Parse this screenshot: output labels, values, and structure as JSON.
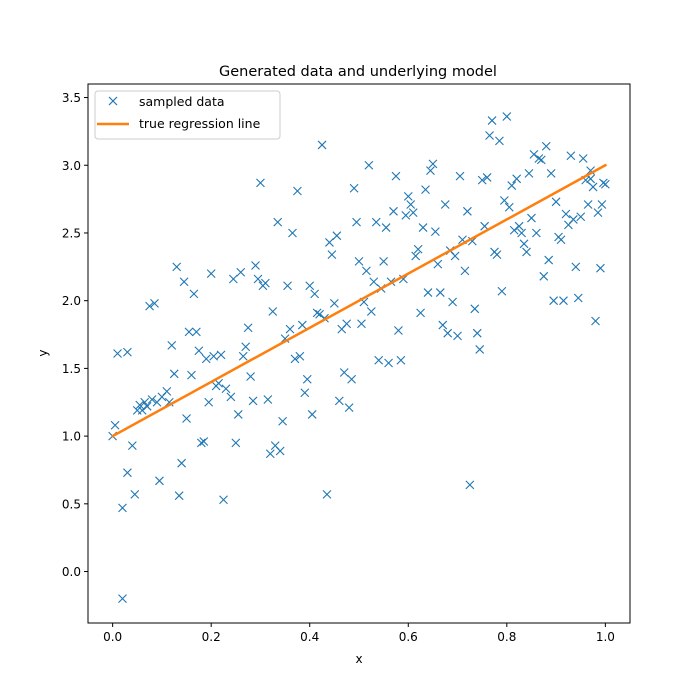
{
  "chart_data": {
    "type": "scatter",
    "title": "Generated data and underlying model",
    "xlabel": "x",
    "ylabel": "y",
    "xlim": [
      -0.05,
      1.05
    ],
    "ylim": [
      -0.38,
      3.6
    ],
    "xticks": [
      "0.0",
      "0.2",
      "0.4",
      "0.6",
      "0.8",
      "1.0"
    ],
    "yticks": [
      "0.0",
      "0.5",
      "1.0",
      "1.5",
      "2.0",
      "2.5",
      "3.0",
      "3.5"
    ],
    "grid": false,
    "legend_position": "top-left",
    "colors": {
      "scatter": "#1f77b4",
      "line": "#ff7f0e"
    },
    "series": [
      {
        "name": "sampled data",
        "kind": "scatter",
        "marker": "x",
        "points": [
          [
            0.0,
            1.0
          ],
          [
            0.005,
            1.08
          ],
          [
            0.01,
            1.61
          ],
          [
            0.02,
            0.47
          ],
          [
            0.02,
            -0.2
          ],
          [
            0.03,
            0.73
          ],
          [
            0.03,
            1.62
          ],
          [
            0.04,
            0.93
          ],
          [
            0.045,
            0.57
          ],
          [
            0.05,
            1.19
          ],
          [
            0.055,
            1.23
          ],
          [
            0.06,
            1.19
          ],
          [
            0.065,
            1.25
          ],
          [
            0.07,
            1.22
          ],
          [
            0.075,
            1.96
          ],
          [
            0.08,
            1.27
          ],
          [
            0.085,
            1.98
          ],
          [
            0.09,
            1.25
          ],
          [
            0.095,
            0.67
          ],
          [
            0.1,
            1.29
          ],
          [
            0.11,
            1.33
          ],
          [
            0.115,
            1.25
          ],
          [
            0.12,
            1.67
          ],
          [
            0.125,
            1.46
          ],
          [
            0.13,
            2.25
          ],
          [
            0.135,
            0.56
          ],
          [
            0.14,
            0.8
          ],
          [
            0.145,
            2.14
          ],
          [
            0.15,
            1.13
          ],
          [
            0.155,
            1.77
          ],
          [
            0.16,
            1.45
          ],
          [
            0.165,
            2.05
          ],
          [
            0.17,
            1.77
          ],
          [
            0.175,
            1.63
          ],
          [
            0.18,
            0.95
          ],
          [
            0.185,
            0.96
          ],
          [
            0.19,
            1.57
          ],
          [
            0.195,
            1.25
          ],
          [
            0.2,
            2.2
          ],
          [
            0.205,
            1.59
          ],
          [
            0.21,
            1.37
          ],
          [
            0.215,
            1.39
          ],
          [
            0.22,
            1.6
          ],
          [
            0.225,
            0.53
          ],
          [
            0.23,
            1.35
          ],
          [
            0.24,
            1.29
          ],
          [
            0.245,
            2.16
          ],
          [
            0.25,
            0.95
          ],
          [
            0.255,
            1.16
          ],
          [
            0.26,
            2.21
          ],
          [
            0.265,
            1.59
          ],
          [
            0.27,
            1.66
          ],
          [
            0.275,
            1.8
          ],
          [
            0.28,
            1.44
          ],
          [
            0.285,
            1.26
          ],
          [
            0.29,
            2.26
          ],
          [
            0.295,
            2.16
          ],
          [
            0.3,
            2.87
          ],
          [
            0.305,
            2.11
          ],
          [
            0.31,
            2.13
          ],
          [
            0.315,
            1.27
          ],
          [
            0.32,
            0.87
          ],
          [
            0.325,
            1.92
          ],
          [
            0.33,
            0.93
          ],
          [
            0.335,
            2.58
          ],
          [
            0.34,
            0.89
          ],
          [
            0.345,
            1.11
          ],
          [
            0.35,
            1.72
          ],
          [
            0.355,
            2.11
          ],
          [
            0.36,
            1.79
          ],
          [
            0.365,
            2.5
          ],
          [
            0.37,
            1.57
          ],
          [
            0.375,
            2.81
          ],
          [
            0.38,
            1.59
          ],
          [
            0.385,
            1.82
          ],
          [
            0.39,
            1.32
          ],
          [
            0.395,
            1.42
          ],
          [
            0.4,
            2.11
          ],
          [
            0.405,
            1.16
          ],
          [
            0.41,
            2.05
          ],
          [
            0.415,
            1.91
          ],
          [
            0.42,
            1.9
          ],
          [
            0.425,
            3.15
          ],
          [
            0.43,
            1.87
          ],
          [
            0.435,
            0.57
          ],
          [
            0.44,
            2.43
          ],
          [
            0.445,
            2.34
          ],
          [
            0.45,
            1.98
          ],
          [
            0.455,
            2.48
          ],
          [
            0.46,
            1.26
          ],
          [
            0.465,
            1.79
          ],
          [
            0.47,
            1.47
          ],
          [
            0.475,
            1.83
          ],
          [
            0.48,
            1.21
          ],
          [
            0.485,
            1.42
          ],
          [
            0.49,
            2.83
          ],
          [
            0.495,
            2.58
          ],
          [
            0.5,
            2.29
          ],
          [
            0.505,
            1.83
          ],
          [
            0.51,
            1.99
          ],
          [
            0.515,
            2.22
          ],
          [
            0.52,
            3.0
          ],
          [
            0.525,
            1.92
          ],
          [
            0.53,
            2.14
          ],
          [
            0.535,
            2.58
          ],
          [
            0.54,
            1.56
          ],
          [
            0.545,
            2.09
          ],
          [
            0.55,
            2.29
          ],
          [
            0.555,
            2.54
          ],
          [
            0.56,
            1.54
          ],
          [
            0.565,
            2.14
          ],
          [
            0.57,
            2.66
          ],
          [
            0.575,
            2.92
          ],
          [
            0.58,
            1.78
          ],
          [
            0.585,
            1.56
          ],
          [
            0.59,
            2.16
          ],
          [
            0.595,
            2.63
          ],
          [
            0.6,
            2.77
          ],
          [
            0.605,
            2.71
          ],
          [
            0.61,
            2.65
          ],
          [
            0.615,
            2.33
          ],
          [
            0.62,
            2.38
          ],
          [
            0.625,
            1.91
          ],
          [
            0.63,
            2.54
          ],
          [
            0.635,
            2.82
          ],
          [
            0.64,
            2.06
          ],
          [
            0.645,
            2.96
          ],
          [
            0.65,
            3.01
          ],
          [
            0.655,
            2.51
          ],
          [
            0.66,
            2.27
          ],
          [
            0.665,
            2.06
          ],
          [
            0.67,
            1.82
          ],
          [
            0.675,
            2.71
          ],
          [
            0.68,
            1.76
          ],
          [
            0.685,
            2.37
          ],
          [
            0.69,
            1.99
          ],
          [
            0.695,
            2.33
          ],
          [
            0.7,
            1.74
          ],
          [
            0.705,
            2.92
          ],
          [
            0.71,
            2.45
          ],
          [
            0.715,
            2.22
          ],
          [
            0.72,
            2.66
          ],
          [
            0.725,
            0.64
          ],
          [
            0.73,
            2.44
          ],
          [
            0.735,
            1.94
          ],
          [
            0.74,
            1.76
          ],
          [
            0.745,
            1.64
          ],
          [
            0.75,
            2.89
          ],
          [
            0.755,
            2.55
          ],
          [
            0.76,
            2.91
          ],
          [
            0.765,
            3.22
          ],
          [
            0.77,
            3.33
          ],
          [
            0.775,
            2.36
          ],
          [
            0.78,
            2.34
          ],
          [
            0.785,
            3.18
          ],
          [
            0.79,
            2.07
          ],
          [
            0.795,
            2.74
          ],
          [
            0.8,
            3.36
          ],
          [
            0.805,
            2.69
          ],
          [
            0.81,
            2.85
          ],
          [
            0.815,
            2.52
          ],
          [
            0.82,
            2.9
          ],
          [
            0.825,
            2.55
          ],
          [
            0.83,
            2.5
          ],
          [
            0.835,
            2.42
          ],
          [
            0.84,
            2.36
          ],
          [
            0.845,
            2.94
          ],
          [
            0.85,
            2.61
          ],
          [
            0.855,
            3.08
          ],
          [
            0.86,
            2.5
          ],
          [
            0.865,
            3.05
          ],
          [
            0.87,
            3.04
          ],
          [
            0.875,
            2.18
          ],
          [
            0.88,
            3.14
          ],
          [
            0.885,
            2.3
          ],
          [
            0.89,
            2.94
          ],
          [
            0.895,
            2.0
          ],
          [
            0.9,
            2.73
          ],
          [
            0.905,
            2.47
          ],
          [
            0.91,
            2.45
          ],
          [
            0.915,
            2.0
          ],
          [
            0.92,
            2.64
          ],
          [
            0.925,
            2.56
          ],
          [
            0.93,
            3.07
          ],
          [
            0.935,
            2.6
          ],
          [
            0.94,
            2.25
          ],
          [
            0.945,
            2.02
          ],
          [
            0.95,
            2.62
          ],
          [
            0.955,
            3.05
          ],
          [
            0.96,
            2.89
          ],
          [
            0.965,
            2.71
          ],
          [
            0.97,
            2.96
          ],
          [
            0.975,
            2.84
          ],
          [
            0.98,
            1.85
          ],
          [
            0.985,
            2.65
          ],
          [
            0.99,
            2.24
          ],
          [
            0.993,
            2.71
          ],
          [
            0.996,
            2.87
          ],
          [
            1.0,
            2.86
          ],
          [
            0.97,
            2.9
          ]
        ]
      },
      {
        "name": "true regression line",
        "kind": "line",
        "x": [
          0,
          1
        ],
        "y": [
          1.0,
          3.0
        ]
      }
    ]
  }
}
